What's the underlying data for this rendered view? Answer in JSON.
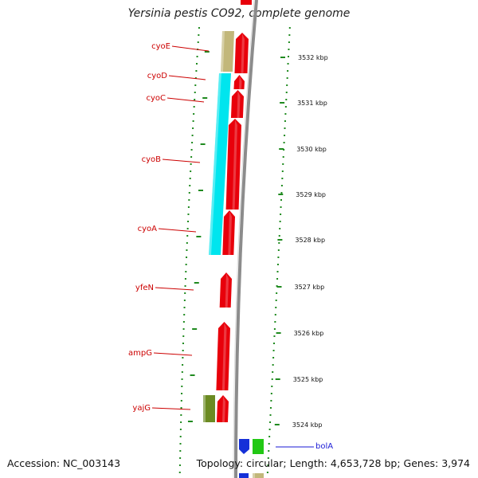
{
  "title": "Yersinia pestis CO92, complete genome",
  "footer": {
    "accession": "Accession: NC_003143",
    "summary": "Topology: circular; Length: 4,653,728 bp; Genes: 3,974"
  },
  "colors": {
    "forward_gene": "#e8000b",
    "reverse_cyan": "#00e5ee",
    "reverse_tan": "#c2b77a",
    "reverse_olive": "#6b8a22",
    "blue_gene": "#1530d8",
    "green_gene": "#22c814",
    "dots": "#1f8a1f",
    "backbone": "#8c8c8c",
    "label_red": "#cc0000",
    "label_blue": "#1a1ad6"
  },
  "gene_labels": [
    {
      "name": "cyoE",
      "color": "label_red"
    },
    {
      "name": "cyoD",
      "color": "label_red"
    },
    {
      "name": "cyoC",
      "color": "label_red"
    },
    {
      "name": "cyoB",
      "color": "label_red"
    },
    {
      "name": "cyoA",
      "color": "label_red"
    },
    {
      "name": "yfeN",
      "color": "label_red"
    },
    {
      "name": "ampG",
      "color": "label_red"
    },
    {
      "name": "yajG",
      "color": "label_red"
    },
    {
      "name": "bolA",
      "color": "label_blue"
    }
  ],
  "ticks": [
    {
      "label": "3532 kbp"
    },
    {
      "label": "3531 kbp"
    },
    {
      "label": "3530 kbp"
    },
    {
      "label": "3529 kbp"
    },
    {
      "label": "3528 kbp"
    },
    {
      "label": "3527 kbp"
    },
    {
      "label": "3526 kbp"
    },
    {
      "label": "3525 kbp"
    },
    {
      "label": "3524 kbp"
    }
  ]
}
